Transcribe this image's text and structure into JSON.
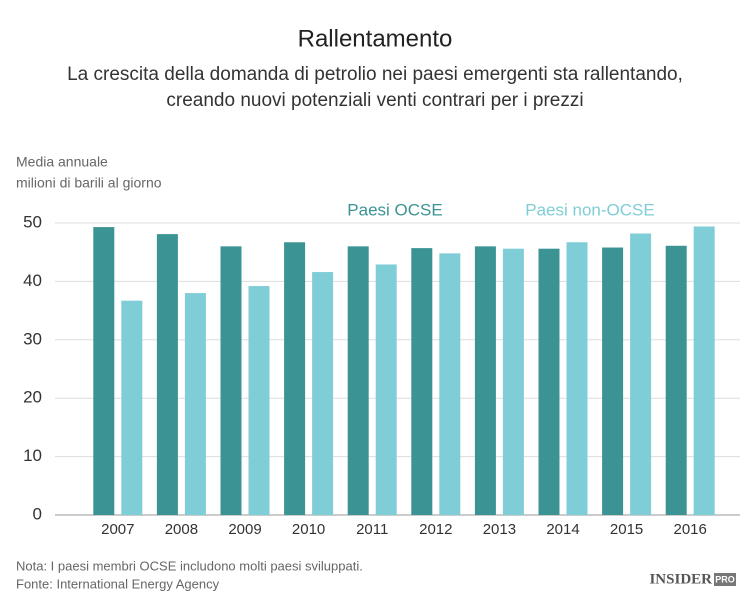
{
  "chart_data": {
    "type": "bar",
    "title": "Rallentamento",
    "subtitle": [
      "La crescita della domanda di petrolio nei paesi emergenti sta rallentando,",
      "creando nuovi potenziali venti contrari per i prezzi"
    ],
    "ylabel": [
      "Media annuale",
      "milioni di barili al giorno"
    ],
    "categories": [
      "2007",
      "2008",
      "2009",
      "2010",
      "2011",
      "2012",
      "2013",
      "2014",
      "2015",
      "2016"
    ],
    "series": [
      {
        "name": "Paesi OCSE",
        "color": "#3b9493",
        "values": [
          49.3,
          48.1,
          46.0,
          46.7,
          46.0,
          45.7,
          46.0,
          45.6,
          45.8,
          46.1
        ]
      },
      {
        "name": "Paesi non-OCSE",
        "color": "#7fcdd6",
        "values": [
          36.7,
          38.0,
          39.2,
          41.6,
          42.9,
          44.8,
          45.6,
          46.7,
          48.2,
          49.4
        ]
      }
    ],
    "ylim": [
      0,
      50
    ],
    "yticks": [
      0,
      10,
      20,
      30,
      40,
      50
    ],
    "grid": true,
    "notes": [
      "Nota: I paesi membri OCSE includono molti paesi sviluppati.",
      "Fonte: International Energy Agency"
    ]
  },
  "logo": {
    "text": "INSIDER",
    "badge": "PRO"
  }
}
